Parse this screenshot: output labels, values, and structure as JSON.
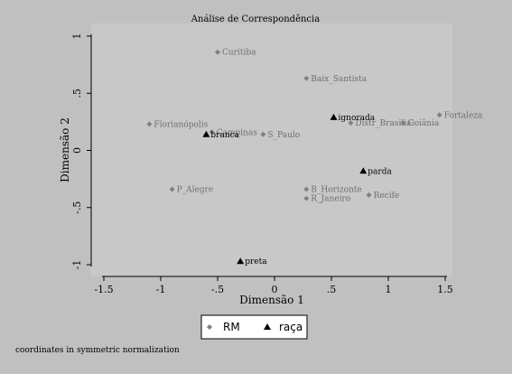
{
  "chart_data": {
    "type": "scatter",
    "title": "Análise de Correspondência",
    "xlabel": "Dimensão 1",
    "ylabel": "Dimensão 2",
    "xlim": [
      -1.5,
      1.5
    ],
    "ylim": [
      -1,
      1
    ],
    "x_ticks": [
      -1.5,
      -1,
      -0.5,
      0,
      0.5,
      1,
      1.5
    ],
    "x_tick_labels": [
      "-1.5",
      "-1",
      "-.5",
      "0",
      ".5",
      "1",
      "1.5"
    ],
    "y_ticks": [
      -1,
      -0.5,
      0,
      0.5,
      1
    ],
    "y_tick_labels": [
      "-1",
      "-.5",
      "0",
      ".5",
      "1"
    ],
    "grid": false,
    "legend_position": "bottom",
    "note": "coordinates in symmetric normalization",
    "series": [
      {
        "name": "RM",
        "marker": "diamond",
        "color": "#808080",
        "label_color": "#6e6e6e",
        "points": [
          {
            "label": "Curitiba",
            "x": -0.5,
            "y": 0.86
          },
          {
            "label": "Baix_Santista",
            "x": 0.28,
            "y": 0.63
          },
          {
            "label": "Fortaleza",
            "x": 1.45,
            "y": 0.31
          },
          {
            "label": "Distr_Brasilia",
            "x": 0.67,
            "y": 0.24
          },
          {
            "label": "Goiânia",
            "x": 1.13,
            "y": 0.24
          },
          {
            "label": "Florianópolis",
            "x": -1.1,
            "y": 0.23
          },
          {
            "label": "Campinas",
            "x": -0.55,
            "y": 0.16
          },
          {
            "label": "S_Paulo",
            "x": -0.1,
            "y": 0.14
          },
          {
            "label": "P_Alegre",
            "x": -0.9,
            "y": -0.34
          },
          {
            "label": "B_Horizonte",
            "x": 0.28,
            "y": -0.34
          },
          {
            "label": "Recife",
            "x": 0.83,
            "y": -0.39
          },
          {
            "label": "R_Janeiro",
            "x": 0.28,
            "y": -0.42
          }
        ]
      },
      {
        "name": "raça",
        "marker": "triangle",
        "color": "#000000",
        "label_color": "#000000",
        "points": [
          {
            "label": "ignorada",
            "x": 0.52,
            "y": 0.29
          },
          {
            "label": "branca",
            "x": -0.6,
            "y": 0.14
          },
          {
            "label": "parda",
            "x": 0.78,
            "y": -0.18
          },
          {
            "label": "preta",
            "x": -0.3,
            "y": -0.97
          }
        ]
      }
    ]
  }
}
